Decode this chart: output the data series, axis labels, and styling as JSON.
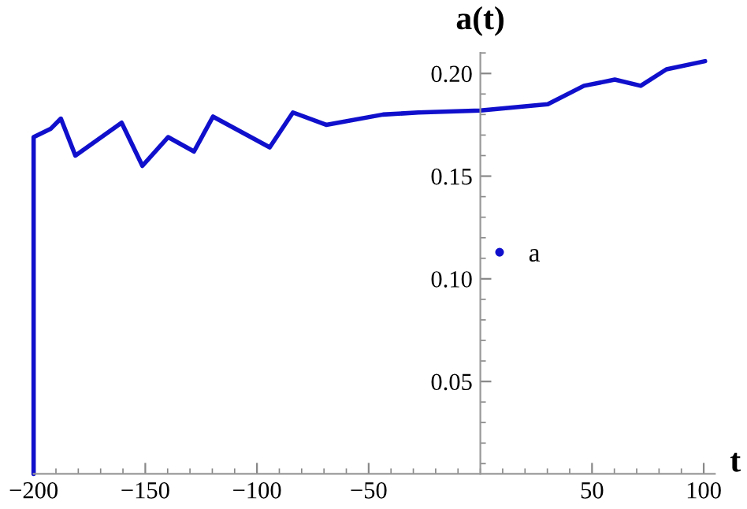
{
  "chart_data": {
    "type": "line",
    "xlabel": "t",
    "ylabel": "a(t)",
    "xlim": [
      -200,
      105
    ],
    "ylim": [
      0.005,
      0.21
    ],
    "xticks": [
      -200,
      -150,
      -100,
      -50,
      50,
      100
    ],
    "yticks": [
      0.05,
      {
        "value": 0.1,
        "label": "0.10"
      },
      0.15,
      {
        "value": 0.2,
        "label": "0.20"
      }
    ],
    "grid": false,
    "legend": "right",
    "series": [
      {
        "name": "a",
        "color": "#1010cc",
        "x": [
          -200,
          -200,
          -192.4,
          -187.8,
          -181.3,
          -160.6,
          -151.3,
          -139.8,
          -128.2,
          -119.7,
          -94.3,
          -83.9,
          -69,
          -43.6,
          -27.7,
          0,
          30.2,
          46.4,
          60.2,
          71.8,
          83.3,
          100.6
        ],
        "values": [
          0.005,
          0.169,
          0.173,
          0.178,
          0.16,
          0.176,
          0.155,
          0.169,
          0.162,
          0.179,
          0.164,
          0.181,
          0.175,
          0.18,
          0.181,
          0.182,
          0.185,
          0.194,
          0.197,
          0.194,
          0.202,
          0.206
        ]
      }
    ]
  }
}
